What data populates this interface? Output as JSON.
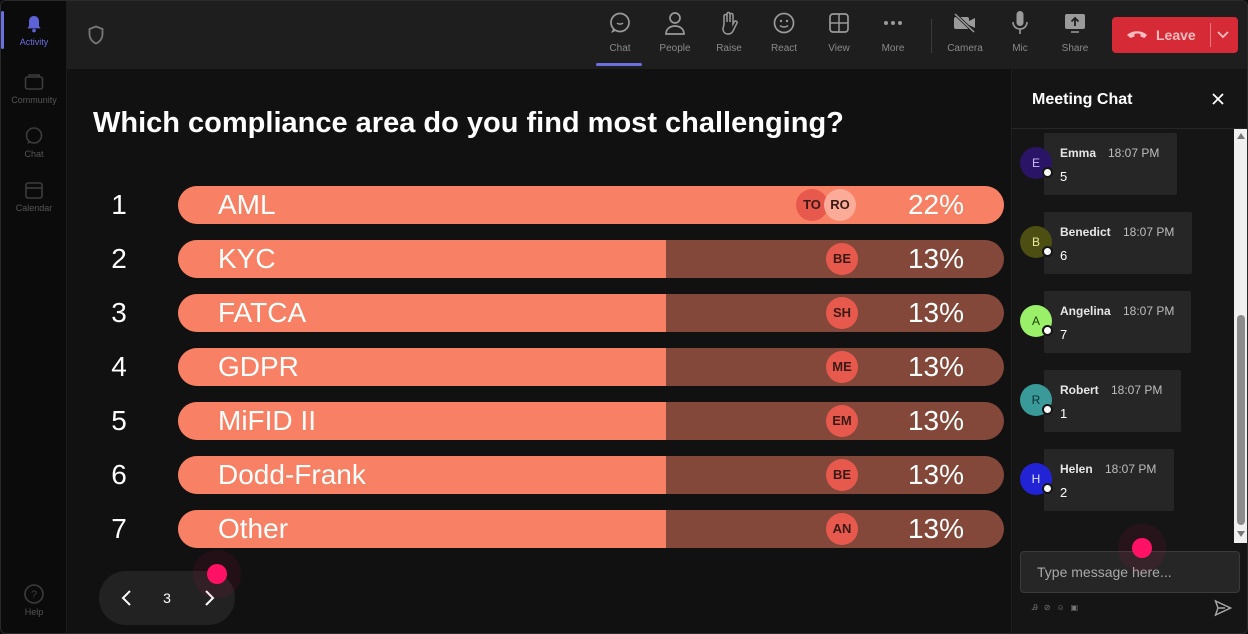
{
  "rail": {
    "items": [
      {
        "label": "Activity"
      },
      {
        "label": "Community"
      },
      {
        "label": "Chat"
      },
      {
        "label": "Calendar"
      }
    ],
    "help": "Help"
  },
  "toolbar": {
    "buttons": [
      {
        "label": "Chat"
      },
      {
        "label": "People"
      },
      {
        "label": "Raise"
      },
      {
        "label": "React"
      },
      {
        "label": "View"
      },
      {
        "label": "More"
      },
      {
        "label": "Camera"
      },
      {
        "label": "Mic"
      },
      {
        "label": "Share"
      }
    ],
    "leave_label": "Leave"
  },
  "poll": {
    "question": "Which compliance area do you find most challenging?",
    "fill_color": "#f88064",
    "track_color": "#83483a",
    "options": [
      {
        "num": "1",
        "label": "AML",
        "percent": 22,
        "percent_label": "22%",
        "voters": [
          "TO",
          "RO"
        ]
      },
      {
        "num": "2",
        "label": "KYC",
        "percent": 13,
        "percent_label": "13%",
        "voters": [
          "BE"
        ]
      },
      {
        "num": "3",
        "label": "FATCA",
        "percent": 13,
        "percent_label": "13%",
        "voters": [
          "SH"
        ]
      },
      {
        "num": "4",
        "label": "GDPR",
        "percent": 13,
        "percent_label": "13%",
        "voters": [
          "ME"
        ]
      },
      {
        "num": "5",
        "label": "MiFID II",
        "percent": 13,
        "percent_label": "13%",
        "voters": [
          "EM"
        ]
      },
      {
        "num": "6",
        "label": "Dodd-Frank",
        "percent": 13,
        "percent_label": "13%",
        "voters": [
          "BE"
        ]
      },
      {
        "num": "7",
        "label": "Other",
        "percent": 13,
        "percent_label": "13%",
        "voters": [
          "AN"
        ]
      }
    ]
  },
  "pager": {
    "page": "3"
  },
  "chat": {
    "title": "Meeting Chat",
    "messages": [
      {
        "initial": "E",
        "name": "Emma",
        "time": "18:07 PM",
        "text": "5",
        "avatar_color": "#2a1466",
        "initial_color": "#c9b8ff"
      },
      {
        "initial": "B",
        "name": "Benedict",
        "time": "18:07 PM",
        "text": "6",
        "avatar_color": "#4d4f12",
        "initial_color": "#e8eaa0"
      },
      {
        "initial": "A",
        "name": "Angelina",
        "time": "18:07 PM",
        "text": "7",
        "avatar_color": "#9bf06a",
        "initial_color": "#1b3a0e"
      },
      {
        "initial": "R",
        "name": "Robert",
        "time": "18:07 PM",
        "text": "1",
        "avatar_color": "#3a9a9a",
        "initial_color": "#0e2c2c"
      },
      {
        "initial": "H",
        "name": "Helen",
        "time": "18:07 PM",
        "text": "2",
        "avatar_color": "#2323d6",
        "initial_color": "#e0e0ff"
      }
    ],
    "input_placeholder": "Type message here..."
  }
}
